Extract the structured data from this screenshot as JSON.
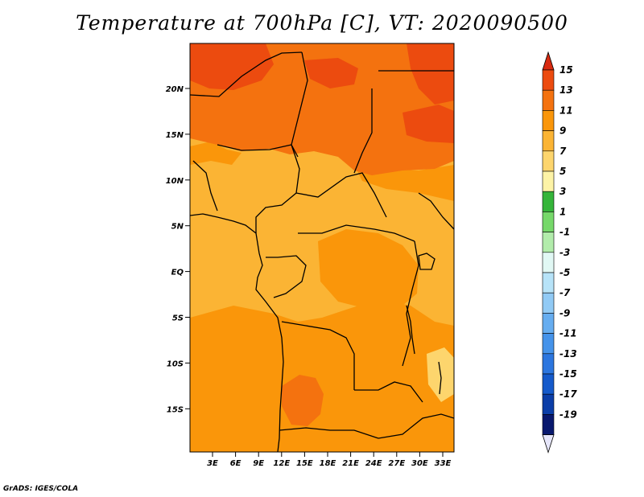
{
  "title": "Temperature at 700hPa [C], VT: 2020090500",
  "footer": "GrADS: IGES/COLA",
  "map": {
    "lat_ticks": [
      "20N",
      "15N",
      "10N",
      "5N",
      "EQ",
      "5S",
      "10S",
      "15S"
    ],
    "lon_ticks": [
      "3E",
      "6E",
      "9E",
      "12E",
      "15E",
      "18E",
      "21E",
      "24E",
      "27E",
      "30E",
      "33E"
    ]
  },
  "colorbar": {
    "labels": [
      "15",
      "13",
      "11",
      "9",
      "7",
      "5",
      "3",
      "1",
      "-1",
      "-3",
      "-5",
      "-7",
      "-9",
      "-11",
      "-13",
      "-15",
      "-17",
      "-19"
    ],
    "colors": [
      "#d82a10",
      "#ec4b0f",
      "#f4720f",
      "#fa960a",
      "#fbb434",
      "#fdd56d",
      "#fdf3a6",
      "#35b53a",
      "#76d86a",
      "#b2ecab",
      "#e1f8f4",
      "#b7e3f8",
      "#91caf5",
      "#66adf0",
      "#4593ea",
      "#2c76df",
      "#155acb",
      "#0b3ea8",
      "#08186e"
    ],
    "top_arrow_color": "#d82a10",
    "bottom_arrow_color": "#e6e6fa"
  }
}
